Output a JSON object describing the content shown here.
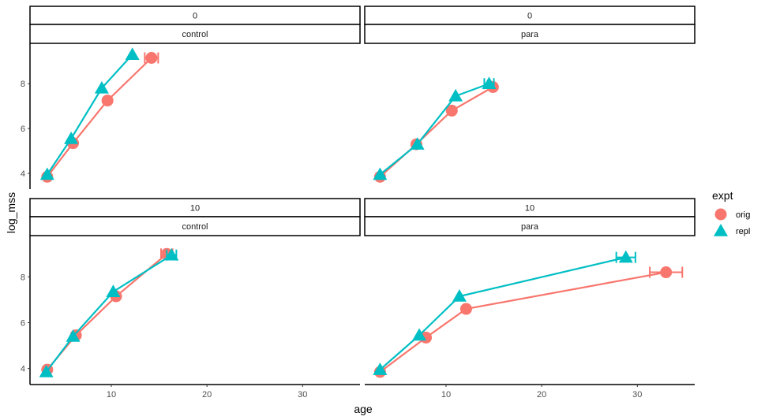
{
  "chart_data": {
    "type": "line",
    "xlabel": "age",
    "ylabel": "log_mss",
    "xlim": [
      1.5,
      36
    ],
    "ylim": [
      3.3,
      9.8
    ],
    "xticks": [
      "10",
      "20",
      "30"
    ],
    "yticks": [
      "4",
      "6",
      "8"
    ],
    "grid": false,
    "legend": {
      "title": "expt",
      "position": "right",
      "entries": [
        "orig",
        "repl"
      ]
    },
    "colors": {
      "orig": "#F8766D",
      "repl": "#00BFC4"
    },
    "panels": [
      {
        "strip_top": "0",
        "strip_bottom": "control",
        "series": [
          {
            "name": "orig",
            "x": [
              3.3,
              6.0,
              9.6,
              14.2
            ],
            "y": [
              3.85,
              5.35,
              7.25,
              9.15
            ],
            "xerr": [
              0,
              0,
              0,
              0.7
            ]
          },
          {
            "name": "repl",
            "x": [
              3.3,
              5.8,
              9.0,
              12.2
            ],
            "y": [
              3.95,
              5.55,
              7.8,
              9.3
            ],
            "xerr": [
              0,
              0,
              0,
              0
            ]
          }
        ]
      },
      {
        "strip_top": "0",
        "strip_bottom": "para",
        "series": [
          {
            "name": "orig",
            "x": [
              3.1,
              6.9,
              10.6,
              14.9
            ],
            "y": [
              3.85,
              5.3,
              6.8,
              7.85
            ],
            "xerr": [
              0,
              0,
              0,
              0
            ]
          },
          {
            "name": "repl",
            "x": [
              3.1,
              7.0,
              11.0,
              14.5
            ],
            "y": [
              3.95,
              5.3,
              7.45,
              8.0
            ],
            "xerr": [
              0,
              0,
              0,
              0.5
            ]
          }
        ]
      },
      {
        "strip_top": "10",
        "strip_bottom": "control",
        "series": [
          {
            "name": "orig",
            "x": [
              3.3,
              6.3,
              10.5,
              15.8
            ],
            "y": [
              3.95,
              5.45,
              7.15,
              9.0
            ],
            "xerr": [
              0,
              0,
              0,
              0.6
            ]
          },
          {
            "name": "repl",
            "x": [
              3.2,
              6.0,
              10.2,
              16.3
            ],
            "y": [
              3.85,
              5.4,
              7.35,
              8.95
            ],
            "xerr": [
              0,
              0,
              0,
              0.5
            ]
          }
        ]
      },
      {
        "strip_top": "10",
        "strip_bottom": "para",
        "series": [
          {
            "name": "orig",
            "x": [
              3.1,
              7.9,
              12.1,
              33.0
            ],
            "y": [
              3.85,
              5.35,
              6.6,
              8.2
            ],
            "xerr": [
              0,
              0,
              0,
              1.7
            ]
          },
          {
            "name": "repl",
            "x": [
              3.1,
              7.2,
              11.4,
              28.8
            ],
            "y": [
              3.95,
              5.45,
              7.15,
              8.85
            ],
            "xerr": [
              0,
              0,
              0,
              1.0
            ]
          }
        ]
      }
    ]
  }
}
